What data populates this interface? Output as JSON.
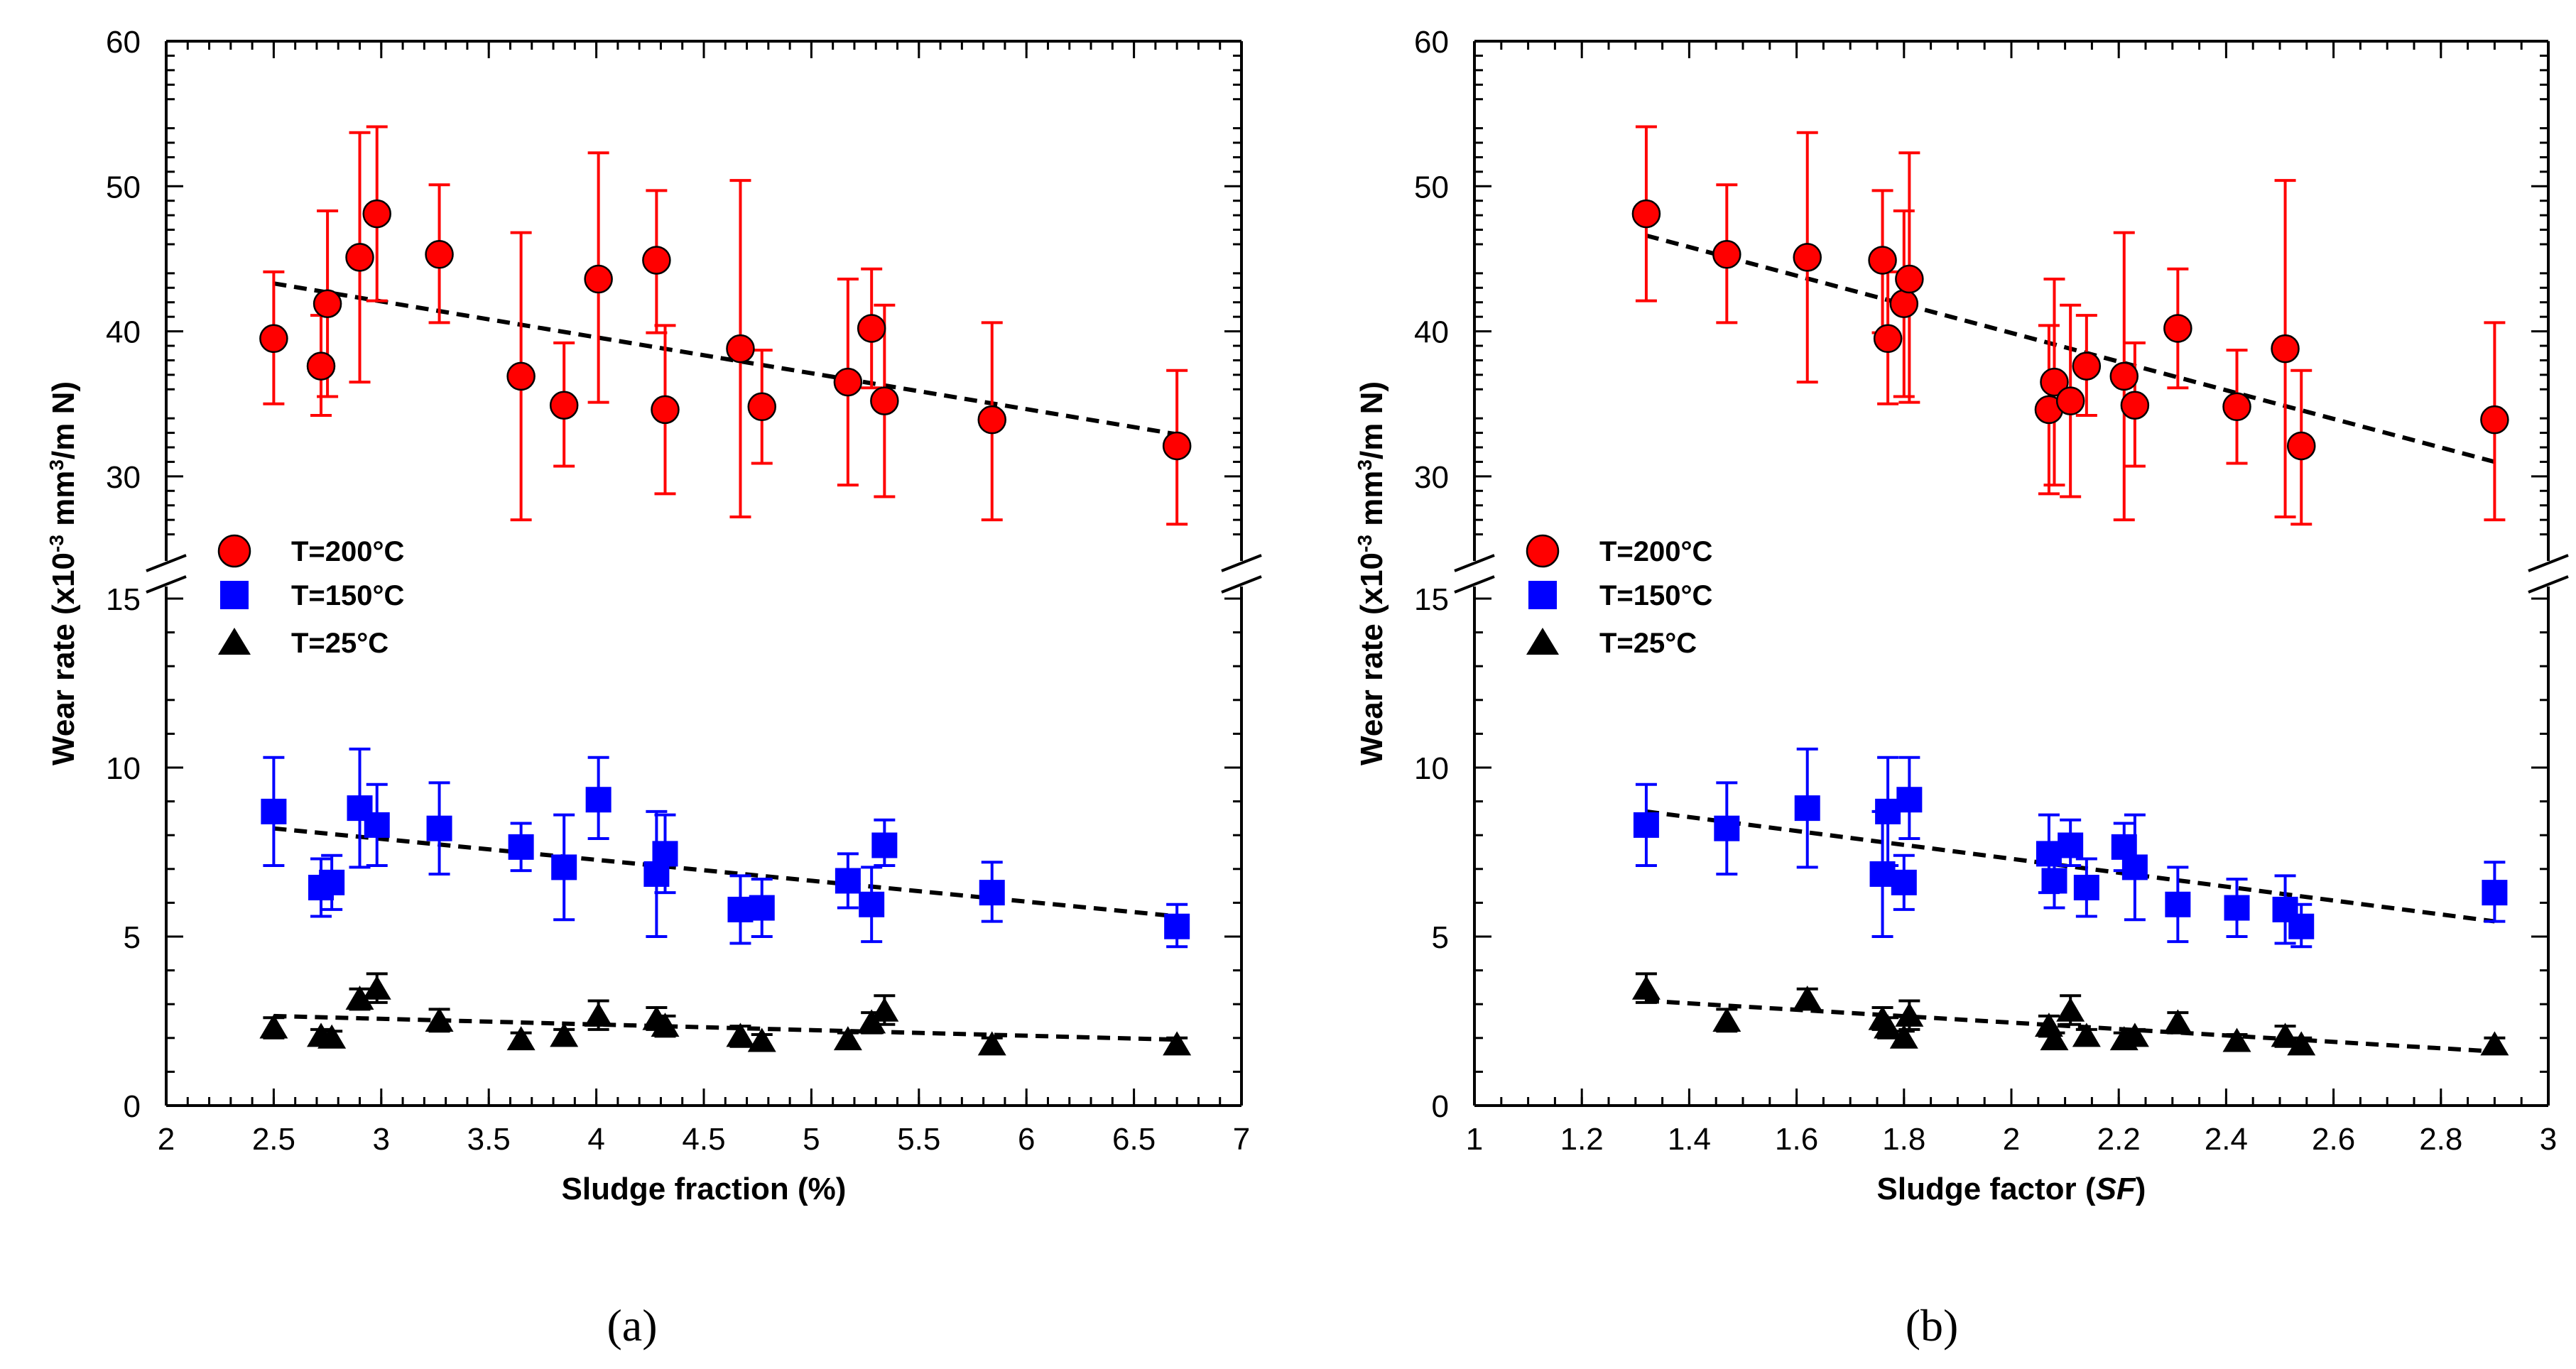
{
  "chart_data": [
    {
      "type": "scatter",
      "panel_label": "(a)",
      "xlabel": "Sludge fraction (%)",
      "xlabel_italic": "",
      "xlabel_close": "",
      "ylabel": "Wear rate (x10",
      "ylabel_exp": "-3",
      "ylabel_units": " mm",
      "ylabel_units_exp": "3",
      "ylabel_end": "/m N)",
      "xlim": [
        2,
        7
      ],
      "xticks": [
        2,
        2.5,
        3,
        3.5,
        4,
        4.5,
        5,
        5.5,
        6,
        6.5,
        7
      ],
      "xtick_labels": [
        "2",
        "2.5",
        "3",
        "3.5",
        "4",
        "4.5",
        "5",
        "5.5",
        "6",
        "6.5",
        "7"
      ],
      "xminor_step": 0.1,
      "ylim_lower": [
        0,
        15
      ],
      "ylim_upper": [
        25,
        60
      ],
      "yticks_lower": [
        0,
        5,
        10,
        15
      ],
      "yticks_upper": [
        30,
        40,
        50,
        60
      ],
      "ytick_labels_lower": [
        "0",
        "5",
        "10",
        "15"
      ],
      "ytick_labels_upper": [
        "30",
        "40",
        "50",
        "60"
      ],
      "legend_position": "left, near axis break",
      "series": [
        {
          "name": "T=200°C",
          "marker": "circle",
          "color": "#ff0000",
          "x": [
            2.5,
            2.72,
            2.75,
            2.9,
            2.98,
            3.27,
            3.65,
            3.85,
            4.01,
            4.28,
            4.32,
            4.67,
            4.77,
            5.17,
            5.28,
            5.34,
            5.84,
            6.7
          ],
          "y": [
            39.5,
            37.6,
            41.9,
            45.1,
            48.1,
            45.3,
            36.9,
            34.9,
            43.6,
            44.9,
            34.6,
            38.8,
            34.8,
            36.5,
            40.2,
            35.2,
            33.9,
            32.1
          ],
          "err_low": [
            4.5,
            3.4,
            6.4,
            8.6,
            6.0,
            4.7,
            9.9,
            4.2,
            8.5,
            5.0,
            5.8,
            11.6,
            3.9,
            7.1,
            4.1,
            6.6,
            6.9,
            5.4
          ],
          "err_high": [
            4.6,
            3.5,
            6.4,
            8.6,
            6.0,
            4.8,
            9.9,
            4.3,
            8.7,
            4.8,
            5.8,
            11.6,
            3.9,
            7.1,
            4.1,
            6.6,
            6.7,
            5.2
          ],
          "trend": [
            [
              2.5,
              43.3
            ],
            [
              6.7,
              32.9
            ]
          ]
        },
        {
          "name": "T=150°C",
          "marker": "square",
          "color": "#0000ff",
          "x": [
            2.5,
            2.72,
            2.77,
            2.9,
            2.98,
            3.27,
            3.65,
            3.85,
            4.01,
            4.28,
            4.32,
            4.67,
            4.77,
            5.17,
            5.28,
            5.34,
            5.84,
            6.7
          ],
          "y": [
            8.7,
            6.45,
            6.6,
            8.8,
            8.3,
            8.2,
            7.65,
            7.05,
            9.05,
            6.85,
            7.45,
            5.8,
            5.85,
            6.65,
            5.95,
            7.7,
            6.3,
            5.3
          ],
          "err_low": [
            1.6,
            0.85,
            0.8,
            1.75,
            1.2,
            1.35,
            0.7,
            1.55,
            1.15,
            1.85,
            1.15,
            1.0,
            0.85,
            0.8,
            1.1,
            0.6,
            0.85,
            0.6
          ],
          "err_high": [
            1.6,
            0.85,
            0.8,
            1.75,
            1.2,
            1.35,
            0.7,
            1.55,
            1.25,
            1.85,
            1.15,
            1.0,
            0.85,
            0.8,
            1.1,
            0.75,
            0.9,
            0.65
          ],
          "trend": [
            [
              2.5,
              8.2
            ],
            [
              6.7,
              5.6
            ]
          ]
        },
        {
          "name": "T=25°C",
          "marker": "triangle",
          "color": "#000000",
          "x": [
            2.5,
            2.72,
            2.77,
            2.9,
            2.98,
            3.27,
            3.65,
            3.85,
            4.01,
            4.28,
            4.32,
            4.67,
            4.77,
            5.17,
            5.28,
            5.34,
            5.84,
            6.7
          ],
          "y": [
            2.3,
            2.05,
            2.0,
            3.15,
            3.45,
            2.5,
            1.95,
            2.05,
            2.65,
            2.55,
            2.35,
            2.05,
            1.9,
            1.95,
            2.45,
            2.8,
            1.8,
            1.8
          ],
          "err_low": [
            0.3,
            0.2,
            0.2,
            0.3,
            0.4,
            0.3,
            0.2,
            0.2,
            0.4,
            0.3,
            0.3,
            0.3,
            0.2,
            0.2,
            0.3,
            0.4,
            0.2,
            0.2
          ],
          "err_high": [
            0.3,
            0.2,
            0.2,
            0.3,
            0.45,
            0.35,
            0.2,
            0.2,
            0.45,
            0.35,
            0.3,
            0.3,
            0.2,
            0.2,
            0.3,
            0.45,
            0.2,
            0.2
          ],
          "trend": [
            [
              2.5,
              2.65
            ],
            [
              6.7,
              1.95
            ]
          ]
        }
      ]
    },
    {
      "type": "scatter",
      "panel_label": "(b)",
      "xlabel": "Sludge factor (",
      "xlabel_italic": "SF",
      "xlabel_close": ")",
      "ylabel": "Wear rate (x10",
      "ylabel_exp": "-3",
      "ylabel_units": " mm",
      "ylabel_units_exp": "3",
      "ylabel_end": "/m N)",
      "xlim": [
        1,
        3
      ],
      "xticks": [
        1,
        1.2,
        1.4,
        1.6,
        1.8,
        2,
        2.2,
        2.4,
        2.6,
        2.8,
        3
      ],
      "xtick_labels": [
        "1",
        "1.2",
        "1.4",
        "1.6",
        "1.8",
        "2",
        "2.2",
        "2.4",
        "2.6",
        "2.8",
        "3"
      ],
      "xminor_step": 0.05,
      "ylim_lower": [
        0,
        15
      ],
      "ylim_upper": [
        25,
        60
      ],
      "yticks_lower": [
        0,
        5,
        10,
        15
      ],
      "yticks_upper": [
        30,
        40,
        50,
        60
      ],
      "ytick_labels_lower": [
        "0",
        "5",
        "10",
        "15"
      ],
      "ytick_labels_upper": [
        "30",
        "40",
        "50",
        "60"
      ],
      "legend_position": "left, near axis break",
      "series": [
        {
          "name": "T=200°C",
          "marker": "circle",
          "color": "#ff0000",
          "x": [
            1.32,
            1.47,
            1.62,
            1.76,
            1.77,
            1.8,
            1.81,
            2.07,
            2.08,
            2.11,
            2.14,
            2.21,
            2.23,
            2.31,
            2.42,
            2.51,
            2.54,
            2.9
          ],
          "y": [
            48.1,
            45.3,
            45.1,
            44.9,
            39.5,
            41.9,
            43.6,
            34.6,
            36.5,
            35.2,
            37.6,
            36.9,
            34.9,
            40.2,
            34.8,
            38.8,
            32.1,
            33.9
          ],
          "err_low": [
            6.0,
            4.7,
            8.6,
            5.0,
            4.5,
            6.4,
            8.5,
            5.8,
            7.1,
            6.6,
            3.4,
            9.9,
            4.2,
            4.1,
            3.9,
            11.6,
            5.4,
            6.9
          ],
          "err_high": [
            6.0,
            4.8,
            8.6,
            4.8,
            4.6,
            6.4,
            8.7,
            5.8,
            7.1,
            6.6,
            3.5,
            9.9,
            4.3,
            4.1,
            3.9,
            11.6,
            5.2,
            6.7
          ],
          "trend": [
            [
              1.32,
              46.6
            ],
            [
              2.9,
              31.0
            ]
          ]
        },
        {
          "name": "T=150°C",
          "marker": "square",
          "color": "#0000ff",
          "x": [
            1.32,
            1.47,
            1.62,
            1.76,
            1.77,
            1.8,
            1.81,
            2.07,
            2.08,
            2.11,
            2.14,
            2.21,
            2.23,
            2.31,
            2.42,
            2.51,
            2.54,
            2.9
          ],
          "y": [
            8.3,
            8.2,
            8.8,
            6.85,
            8.7,
            6.6,
            9.05,
            7.45,
            6.65,
            7.7,
            6.45,
            7.65,
            7.05,
            5.95,
            5.85,
            5.8,
            5.3,
            6.3
          ],
          "err_low": [
            1.2,
            1.35,
            1.75,
            1.85,
            1.6,
            0.8,
            1.15,
            1.15,
            0.8,
            0.6,
            0.85,
            0.7,
            1.55,
            1.1,
            0.85,
            1.0,
            0.6,
            0.85
          ],
          "err_high": [
            1.2,
            1.35,
            1.75,
            1.85,
            1.6,
            0.8,
            1.25,
            1.15,
            0.8,
            0.75,
            0.85,
            0.7,
            1.55,
            1.1,
            0.85,
            1.0,
            0.65,
            0.9
          ],
          "trend": [
            [
              1.32,
              8.7
            ],
            [
              2.9,
              5.45
            ]
          ]
        },
        {
          "name": "T=25°C",
          "marker": "triangle",
          "color": "#000000",
          "x": [
            1.32,
            1.47,
            1.62,
            1.76,
            1.77,
            1.8,
            1.81,
            2.07,
            2.08,
            2.11,
            2.14,
            2.21,
            2.23,
            2.31,
            2.42,
            2.51,
            2.54,
            2.9
          ],
          "y": [
            3.45,
            2.5,
            3.15,
            2.55,
            2.3,
            2.0,
            2.65,
            2.35,
            1.95,
            2.8,
            2.05,
            1.95,
            2.05,
            2.45,
            1.9,
            2.05,
            1.8,
            1.8
          ],
          "err_low": [
            0.4,
            0.3,
            0.3,
            0.3,
            0.3,
            0.2,
            0.4,
            0.3,
            0.2,
            0.4,
            0.2,
            0.2,
            0.2,
            0.3,
            0.2,
            0.3,
            0.2,
            0.2
          ],
          "err_high": [
            0.45,
            0.35,
            0.3,
            0.35,
            0.3,
            0.2,
            0.45,
            0.3,
            0.2,
            0.45,
            0.2,
            0.2,
            0.2,
            0.3,
            0.2,
            0.3,
            0.2,
            0.2
          ],
          "trend": [
            [
              1.32,
              3.1
            ],
            [
              2.9,
              1.6
            ]
          ]
        }
      ]
    }
  ]
}
